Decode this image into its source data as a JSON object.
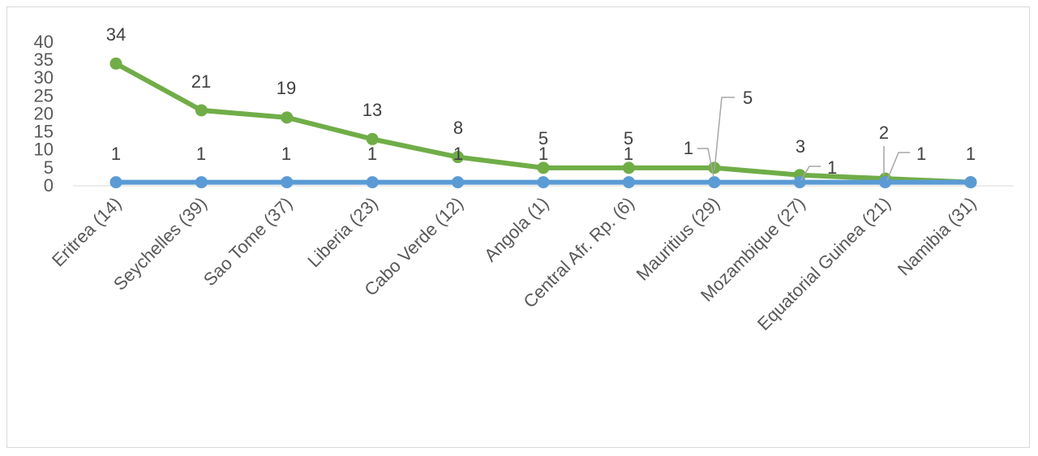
{
  "chart_data": {
    "type": "line",
    "title": "",
    "xlabel": "",
    "ylabel": "",
    "categories": [
      "Eritrea (14)",
      "Seychelles (39)",
      "Sao Tome (37)",
      "Liberia (23)",
      "Cabo Verde (12)",
      "Angola (1)",
      "Central Afr. Rp. (6)",
      "Mauritius (29)",
      "Mozambique (27)",
      "Equatorial Guinea (21)",
      "Namibia (31)"
    ],
    "series": [
      {
        "color": "#70ad47",
        "values": [
          34,
          21,
          19,
          13,
          8,
          5,
          5,
          5,
          3,
          2,
          1
        ],
        "labels": [
          "34",
          "21",
          "19",
          "13",
          "8",
          "5",
          "5",
          "5",
          "3",
          "2",
          ""
        ]
      },
      {
        "color": "#5b9bd5",
        "values": [
          1,
          1,
          1,
          1,
          1,
          1,
          1,
          1,
          1,
          1,
          1
        ],
        "labels": [
          "1",
          "1",
          "1",
          "1",
          "1",
          "1",
          "1",
          "1",
          "1",
          "1",
          "1"
        ]
      }
    ],
    "y_ticks": [
      "0",
      "5",
      "10",
      "15",
      "20",
      "25",
      "30",
      "35",
      "40"
    ],
    "ylim": [
      0,
      40
    ],
    "grid": false,
    "legend": "none",
    "leader_line_color": "#a6a6a6",
    "axis_color": "#d9d9d9"
  }
}
